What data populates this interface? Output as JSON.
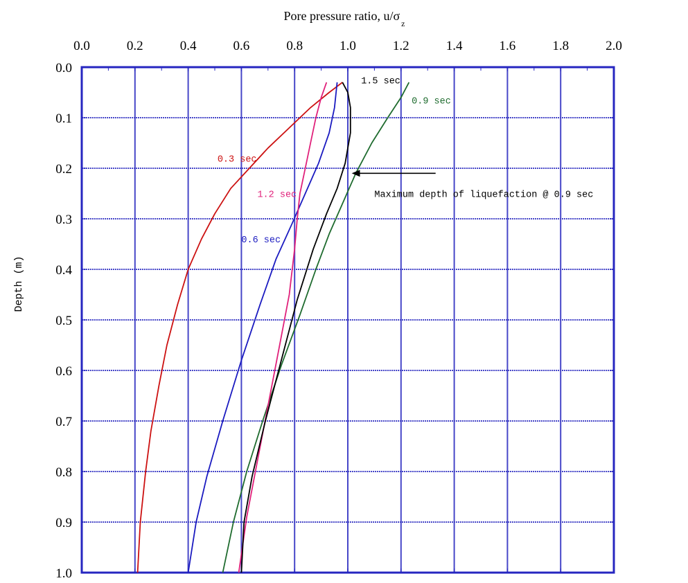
{
  "chart_data": {
    "type": "line",
    "title": "",
    "xlabel": "Pore pressure ratio, u/σ",
    "xlabel_subscript": "z",
    "ylabel": "Depth (m)",
    "xlim": [
      0.0,
      2.0
    ],
    "ylim": [
      0.0,
      1.0
    ],
    "y_inverted": true,
    "x_axis_position": "top",
    "grid": true,
    "x_ticks": [
      "0.0",
      "0.2",
      "0.4",
      "0.6",
      "0.8",
      "1.0",
      "1.2",
      "1.4",
      "1.6",
      "1.8",
      "2.0"
    ],
    "y_ticks": [
      "0.0",
      "0.1",
      "0.2",
      "0.3",
      "0.4",
      "0.5",
      "0.6",
      "0.7",
      "0.8",
      "0.9",
      "1.0"
    ],
    "colors": {
      "frame": "#2626c0",
      "grid": "#4646c8",
      "label_0.3": "#cc1111",
      "label_0.6": "#1a1ac0",
      "label_0.9": "#1e6b2e",
      "label_1.2": "#e0207a",
      "label_1.5": "#000000"
    },
    "series": [
      {
        "name": "0.3 sec",
        "color": "#cc1111",
        "x": [
          0.98,
          0.93,
          0.86,
          0.78,
          0.7,
          0.63,
          0.56,
          0.5,
          0.45,
          0.4,
          0.36,
          0.32,
          0.29,
          0.26,
          0.24,
          0.22,
          0.21
        ],
        "y": [
          0.03,
          0.05,
          0.08,
          0.12,
          0.16,
          0.2,
          0.24,
          0.29,
          0.34,
          0.4,
          0.47,
          0.55,
          0.63,
          0.72,
          0.8,
          0.9,
          1.0
        ]
      },
      {
        "name": "0.6 sec",
        "color": "#1a1ac0",
        "x": [
          0.96,
          0.95,
          0.93,
          0.89,
          0.84,
          0.79,
          0.73,
          0.67,
          0.6,
          0.53,
          0.47,
          0.43,
          0.4
        ],
        "y": [
          0.03,
          0.08,
          0.13,
          0.19,
          0.25,
          0.31,
          0.38,
          0.47,
          0.58,
          0.7,
          0.81,
          0.9,
          1.0
        ]
      },
      {
        "name": "0.9 sec",
        "color": "#1e6b2e",
        "x": [
          1.23,
          1.2,
          1.15,
          1.09,
          1.03,
          0.98,
          0.93,
          0.88,
          0.82,
          0.75,
          0.68,
          0.62,
          0.57,
          0.53
        ],
        "y": [
          0.03,
          0.06,
          0.1,
          0.15,
          0.21,
          0.27,
          0.33,
          0.4,
          0.49,
          0.59,
          0.7,
          0.8,
          0.9,
          1.0
        ]
      },
      {
        "name": "1.2 sec",
        "color": "#e0207a",
        "x": [
          0.92,
          0.9,
          0.88,
          0.86,
          0.84,
          0.82,
          0.81,
          0.8,
          0.78,
          0.74,
          0.7,
          0.66,
          0.62,
          0.59
        ],
        "y": [
          0.03,
          0.06,
          0.1,
          0.15,
          0.2,
          0.25,
          0.3,
          0.36,
          0.45,
          0.56,
          0.67,
          0.78,
          0.89,
          1.0
        ]
      },
      {
        "name": "1.5 sec",
        "color": "#000000",
        "x": [
          0.98,
          1.0,
          1.01,
          1.01,
          0.99,
          0.96,
          0.92,
          0.87,
          0.81,
          0.75,
          0.69,
          0.64,
          0.61,
          0.6
        ],
        "y": [
          0.03,
          0.05,
          0.08,
          0.13,
          0.19,
          0.24,
          0.29,
          0.36,
          0.46,
          0.58,
          0.7,
          0.81,
          0.9,
          1.0
        ]
      }
    ],
    "series_labels": [
      {
        "text": "0.3 sec",
        "x": 0.51,
        "y": 0.18
      },
      {
        "text": "0.6 sec",
        "x": 0.6,
        "y": 0.34
      },
      {
        "text": "0.9 sec",
        "x": 1.24,
        "y": 0.065
      },
      {
        "text": "1.2 sec",
        "x": 0.66,
        "y": 0.25
      },
      {
        "text": "1.5 sec",
        "x": 1.05,
        "y": 0.025
      }
    ],
    "annotation": {
      "text": "Maximum depth of liquefaction @ 0.9 sec",
      "text_x": 1.1,
      "text_y": 0.25,
      "arrow_from": [
        1.33,
        0.21
      ],
      "arrow_to": [
        1.02,
        0.21
      ]
    }
  }
}
